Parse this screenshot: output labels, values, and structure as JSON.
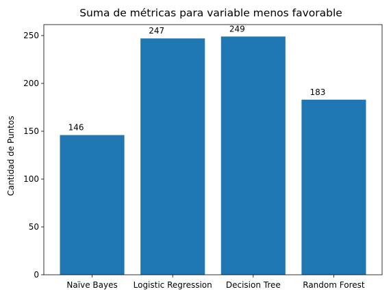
{
  "chart_data": {
    "type": "bar",
    "title": "Suma de métricas para variable menos favorable",
    "xlabel": "",
    "ylabel": "Cantidad de Puntos",
    "categories": [
      "Naïve Bayes",
      "Logistic Regression",
      "Decision Tree",
      "Random Forest"
    ],
    "values": [
      146,
      247,
      249,
      183
    ],
    "data_labels": [
      "146",
      "247",
      "249",
      "183"
    ],
    "ylim": [
      0,
      261.45
    ],
    "yticks": [
      0,
      50,
      100,
      150,
      200,
      250
    ],
    "bar_color": "#1f77b4",
    "grid": false
  }
}
